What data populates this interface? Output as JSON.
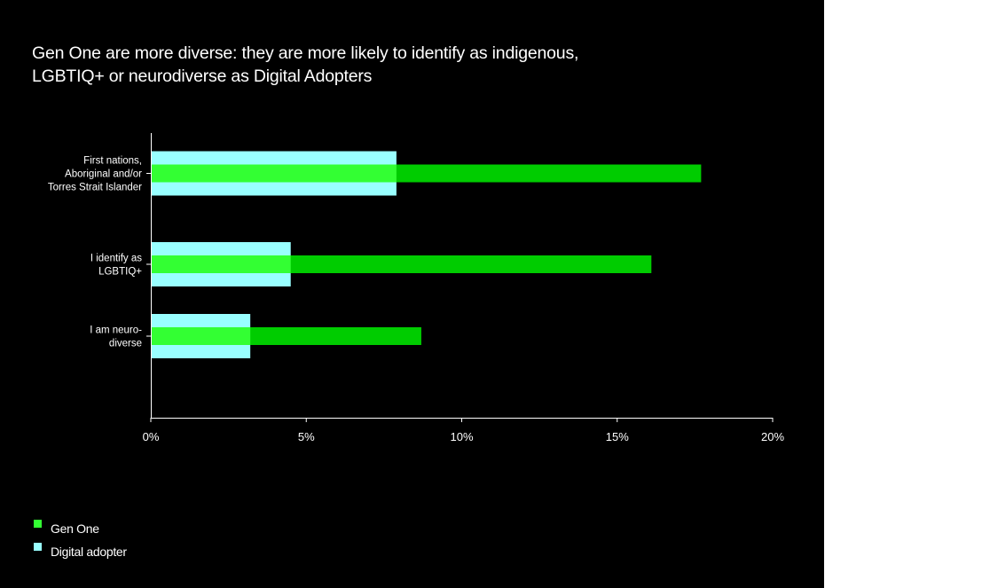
{
  "chart_data": {
    "type": "bar",
    "orientation": "horizontal",
    "title": "Gen One are more diverse: they are more likely to identify as indigenous, LGBTIQ+ or neurodiverse as Digital Adopters",
    "categories": [
      [
        "First nations,",
        "Aboriginal and/or",
        "Torres Strait Islander"
      ],
      [
        "I identify as",
        "LGBTIQ+"
      ],
      [
        "I am neuro-",
        "diverse"
      ]
    ],
    "series": [
      {
        "name": "Digital adopter",
        "color": "#99ffff",
        "values": [
          7.9,
          4.5,
          3.2
        ]
      },
      {
        "name": "Gen One",
        "color": "#00cc00",
        "values": [
          17.7,
          16.1,
          8.7
        ]
      }
    ],
    "overlap_color": "#33ff33",
    "xlim": [
      0,
      20
    ],
    "xticks": [
      0,
      5,
      10,
      15,
      20
    ],
    "tick_format": "percent",
    "grid": false,
    "legend": {
      "placement": "bottom-left",
      "items": [
        {
          "label": "Gen One",
          "color": "#33ff33"
        },
        {
          "label": "Digital adopter",
          "color": "#99ffff"
        }
      ]
    }
  }
}
